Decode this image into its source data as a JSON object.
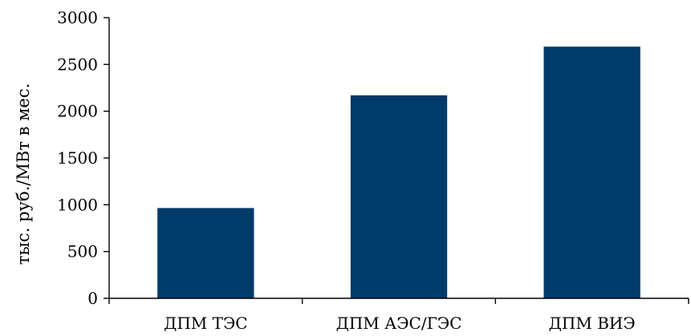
{
  "chart_data": {
    "type": "bar",
    "categories": [
      "ДПМ ТЭС",
      "ДПМ АЭС/ГЭС",
      "ДПМ ВИЭ"
    ],
    "values": [
      965,
      2170,
      2690
    ],
    "ylabel": "тыс. руб./МВт в мес.",
    "ylim": [
      0,
      3000
    ],
    "yticks": [
      0,
      500,
      1000,
      1500,
      2000,
      2500,
      3000
    ],
    "grid": false,
    "legend": "none",
    "bar_color": "#003B6A"
  }
}
